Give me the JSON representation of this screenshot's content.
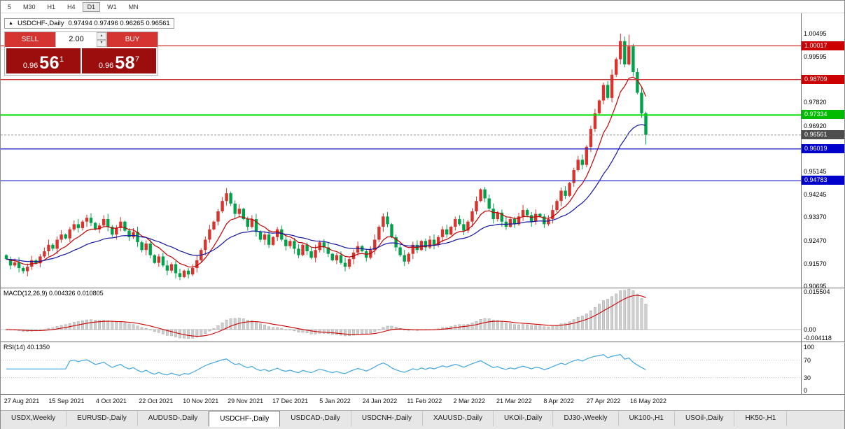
{
  "toolbar": {
    "timeframes": [
      "5",
      "M30",
      "H1",
      "H4",
      "D1",
      "W1",
      "MN"
    ],
    "active": "D1"
  },
  "chart_header": {
    "symbol": "USDCHF-,Daily",
    "ohlc": "0.97494 0.97496 0.96265 0.96561"
  },
  "trade_panel": {
    "sell_label": "SELL",
    "buy_label": "BUY",
    "volume": "2.00",
    "sell_price": {
      "prefix": "0.96",
      "big": "56",
      "sup": "1"
    },
    "buy_price": {
      "prefix": "0.96",
      "big": "58",
      "sup": "7"
    }
  },
  "price_axis": {
    "ticks": [
      {
        "label": "1.00495",
        "price": 1.00495
      },
      {
        "label": "0.99595",
        "price": 0.99595
      },
      {
        "label": "0.97820",
        "price": 0.9782
      },
      {
        "label": "0.96920",
        "price": 0.9692
      },
      {
        "label": "0.95145",
        "price": 0.95145
      },
      {
        "label": "0.94245",
        "price": 0.94245
      },
      {
        "label": "0.93370",
        "price": 0.9337
      },
      {
        "label": "0.92470",
        "price": 0.9247
      },
      {
        "label": "0.91570",
        "price": 0.9157
      },
      {
        "label": "0.90695",
        "price": 0.90695
      }
    ]
  },
  "hlines": [
    {
      "label": "1.00017",
      "price": 1.00017,
      "color": "#cc3333",
      "badge": "#cc0000",
      "width": 1.3
    },
    {
      "label": "0.98709",
      "price": 0.98709,
      "color": "#cc3333",
      "badge": "#cc0000",
      "width": 1.3
    },
    {
      "label": "0.97334",
      "price": 0.97334,
      "color": "#00dd00",
      "badge": "#00bb00",
      "width": 2
    },
    {
      "label": "0.96019",
      "price": 0.96019,
      "color": "#2929cc",
      "badge": "#0000cc",
      "width": 1.3
    },
    {
      "label": "0.94783",
      "price": 0.94783,
      "color": "#2929cc",
      "badge": "#0000cc",
      "width": 1.3
    }
  ],
  "current_price": {
    "label": "0.96561",
    "price": 0.96561,
    "color": "#9c9c9c",
    "badge": "#4d4d4d"
  },
  "macd": {
    "label": "MACD(12,26,9) 0.004326 0.010805",
    "axis_labels": [
      {
        "label": "0.015504",
        "value": 0.015504
      },
      {
        "label": "0.00",
        "value": 0
      },
      {
        "label": "-0.004118",
        "value": -0.004118
      }
    ],
    "ylim": [
      -0.0048,
      0.0165
    ]
  },
  "rsi": {
    "label": "RSI(14) 40.1350",
    "axis_labels": [
      {
        "label": "100",
        "value": 100
      },
      {
        "label": "70",
        "value": 70
      },
      {
        "label": "30",
        "value": 30
      },
      {
        "label": "0",
        "value": 0
      }
    ],
    "levels": [
      70,
      30
    ],
    "ylim": [
      -8,
      112
    ]
  },
  "date_axis": [
    "27 Aug 2021",
    "15 Sep 2021",
    "4 Oct 2021",
    "22 Oct 2021",
    "10 Nov 2021",
    "29 Nov 2021",
    "17 Dec 2021",
    "5 Jan 2022",
    "24 Jan 2022",
    "11 Feb 2022",
    "2 Mar 2022",
    "21 Mar 2022",
    "8 Apr 2022",
    "27 Apr 2022",
    "16 May 2022"
  ],
  "tabs": {
    "items": [
      "USDX,Weekly",
      "EURUSD-,Daily",
      "AUDUSD-,Daily",
      "USDCHF-,Daily",
      "USDCAD-,Daily",
      "USDCNH-,Daily",
      "XAUUSD-,Daily",
      "UKOil-,Daily",
      "DJ30-,Weekly",
      "UK100-,H1",
      "USOil-,Daily",
      "HK50-,H1"
    ],
    "active_index": 3
  },
  "colors": {
    "up": "#d9332e",
    "down": "#00a14b",
    "ma_fast": "#c00000",
    "ma_slow": "#1515a3",
    "macd_hist": "#cfcfcf",
    "macd_hist_edge": "#9a9a9a",
    "macd_signal": "#cc0000",
    "rsi_line": "#3ea6dd"
  },
  "chart_data": {
    "type": "candlestick",
    "symbol": "USDCHF",
    "timeframe": "Daily",
    "ylim": [
      0.9064,
      1.0128
    ],
    "first_open": 0.919,
    "closes": [
      0.9175,
      0.915,
      0.9162,
      0.914,
      0.9128,
      0.9145,
      0.917,
      0.9158,
      0.9185,
      0.9205,
      0.923,
      0.9215,
      0.925,
      0.927,
      0.9255,
      0.929,
      0.931,
      0.9295,
      0.932,
      0.9335,
      0.9315,
      0.929,
      0.9305,
      0.933,
      0.93,
      0.927,
      0.9295,
      0.932,
      0.9285,
      0.926,
      0.928,
      0.924,
      0.921,
      0.9235,
      0.919,
      0.916,
      0.9185,
      0.915,
      0.913,
      0.9155,
      0.912,
      0.9105,
      0.913,
      0.9115,
      0.914,
      0.917,
      0.921,
      0.925,
      0.929,
      0.932,
      0.936,
      0.94,
      0.943,
      0.939,
      0.935,
      0.937,
      0.933,
      0.93,
      0.933,
      0.928,
      0.925,
      0.927,
      0.923,
      0.926,
      0.929,
      0.925,
      0.9225,
      0.9245,
      0.9215,
      0.919,
      0.923,
      0.9205,
      0.918,
      0.921,
      0.924,
      0.922,
      0.9195,
      0.917,
      0.919,
      0.916,
      0.9145,
      0.9175,
      0.92,
      0.9225,
      0.9205,
      0.918,
      0.921,
      0.925,
      0.93,
      0.934,
      0.931,
      0.926,
      0.922,
      0.919,
      0.9165,
      0.9195,
      0.923,
      0.921,
      0.9245,
      0.922,
      0.925,
      0.923,
      0.926,
      0.929,
      0.927,
      0.93,
      0.933,
      0.931,
      0.9285,
      0.932,
      0.936,
      0.94,
      0.9445,
      0.941,
      0.937,
      0.933,
      0.9355,
      0.932,
      0.93,
      0.933,
      0.931,
      0.934,
      0.9365,
      0.9345,
      0.932,
      0.935,
      0.934,
      0.931,
      0.933,
      0.9365,
      0.94,
      0.944,
      0.942,
      0.947,
      0.952,
      0.956,
      0.954,
      0.961,
      0.968,
      0.974,
      0.979,
      0.985,
      0.98,
      0.989,
      0.995,
      1.002,
      0.993,
      1.0,
      0.99,
      0.982,
      0.974,
      0.9656
    ],
    "wick_overrides": {
      "145": {
        "h": 1.00495
      },
      "147": {
        "h": 1.0045
      },
      "151": {
        "l": 0.962
      }
    }
  }
}
